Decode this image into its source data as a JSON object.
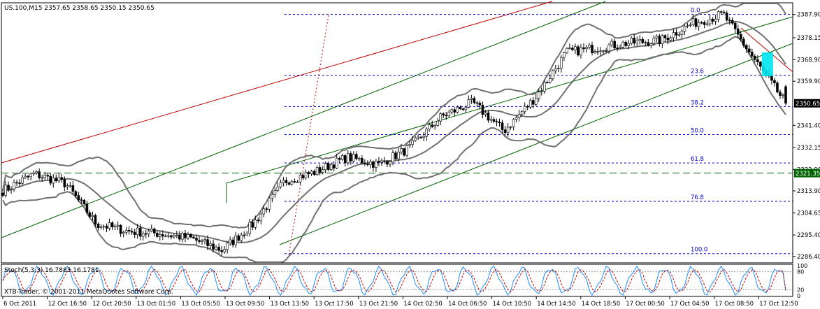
{
  "window": {
    "symbol_header": "US.100,M15  2357.65 2358.65 2350.15 2350.65",
    "copyright": "XTB-Trader, © 2001-2011 MetaQuotes Software Corp."
  },
  "price_axis": {
    "labels": [
      "2387.90",
      "2378.15",
      "2368.90",
      "2359.90",
      "2341.40",
      "2332.15",
      "2322.90",
      "2313.90",
      "2304.65",
      "2295.40",
      "2286.40"
    ],
    "current_price_label": "2350.65",
    "line_price_label": "2321.35",
    "ylim": [
      2284.0,
      2392.5
    ]
  },
  "fibonacci": {
    "levels": [
      {
        "label": "0.0",
        "price": 2387.9
      },
      {
        "label": "23.6",
        "price": 2362.4
      },
      {
        "label": "38.2",
        "price": 2349.3
      },
      {
        "label": "50.0",
        "price": 2337.5
      },
      {
        "label": "61.8",
        "price": 2325.6
      },
      {
        "label": "76.8",
        "price": 2309.5
      },
      {
        "label": "100.0",
        "price": 2287.6
      }
    ]
  },
  "stochastic": {
    "label": "Stoch(5,3,3) 16.7883 16.1781",
    "levels": [
      "100",
      "80",
      "20",
      "0"
    ],
    "main_value": 16.7883,
    "signal_value": 16.1781
  },
  "time_axis": {
    "labels": [
      "6 Oct 2011",
      "12 Oct 16:50",
      "12 Oct 20:50",
      "13 Oct 01:50",
      "13 Oct 05:50",
      "13 Oct 09:50",
      "13 Oct 13:50",
      "13 Oct 17:50",
      "13 Oct 21:50",
      "14 Oct 02:50",
      "14 Oct 06:50",
      "14 Oct 10:50",
      "14 Oct 14:50",
      "14 Oct 18:50",
      "17 Oct 00:50",
      "17 Oct 04:50",
      "17 Oct 08:50",
      "17 Oct 12:50"
    ]
  },
  "colors": {
    "price_channel": "#c00000",
    "trend_channel": "#006400",
    "bollinger": "#707070",
    "fibonacci": "#0000cc",
    "highlight": "#00e5ee",
    "stoch_main": "#1e90ff",
    "stoch_signal": "#c00000"
  },
  "chart_data": {
    "type": "candlestick",
    "x": [
      "6 Oct 2011",
      "12 Oct 16:50",
      "12 Oct 20:50",
      "13 Oct 01:50",
      "13 Oct 05:50",
      "13 Oct 09:50",
      "13 Oct 13:50",
      "13 Oct 17:50",
      "13 Oct 21:50",
      "14 Oct 02:50",
      "14 Oct 06:50",
      "14 Oct 10:50",
      "14 Oct 14:50",
      "14 Oct 18:50",
      "17 Oct 00:50",
      "17 Oct 04:50",
      "17 Oct 08:50",
      "17 Oct 12:50"
    ],
    "price_path": [
      2314,
      2321,
      2317,
      2300,
      2297,
      2296,
      2294,
      2289,
      2300,
      2318,
      2322,
      2328,
      2325,
      2332,
      2345,
      2351,
      2339,
      2353,
      2372,
      2374,
      2376,
      2377,
      2384,
      2388,
      2369,
      2350.65
    ],
    "last": {
      "open": 2357.65,
      "high": 2358.65,
      "low": 2350.15,
      "close": 2350.65
    },
    "horizontal_line": 2321.35
  }
}
